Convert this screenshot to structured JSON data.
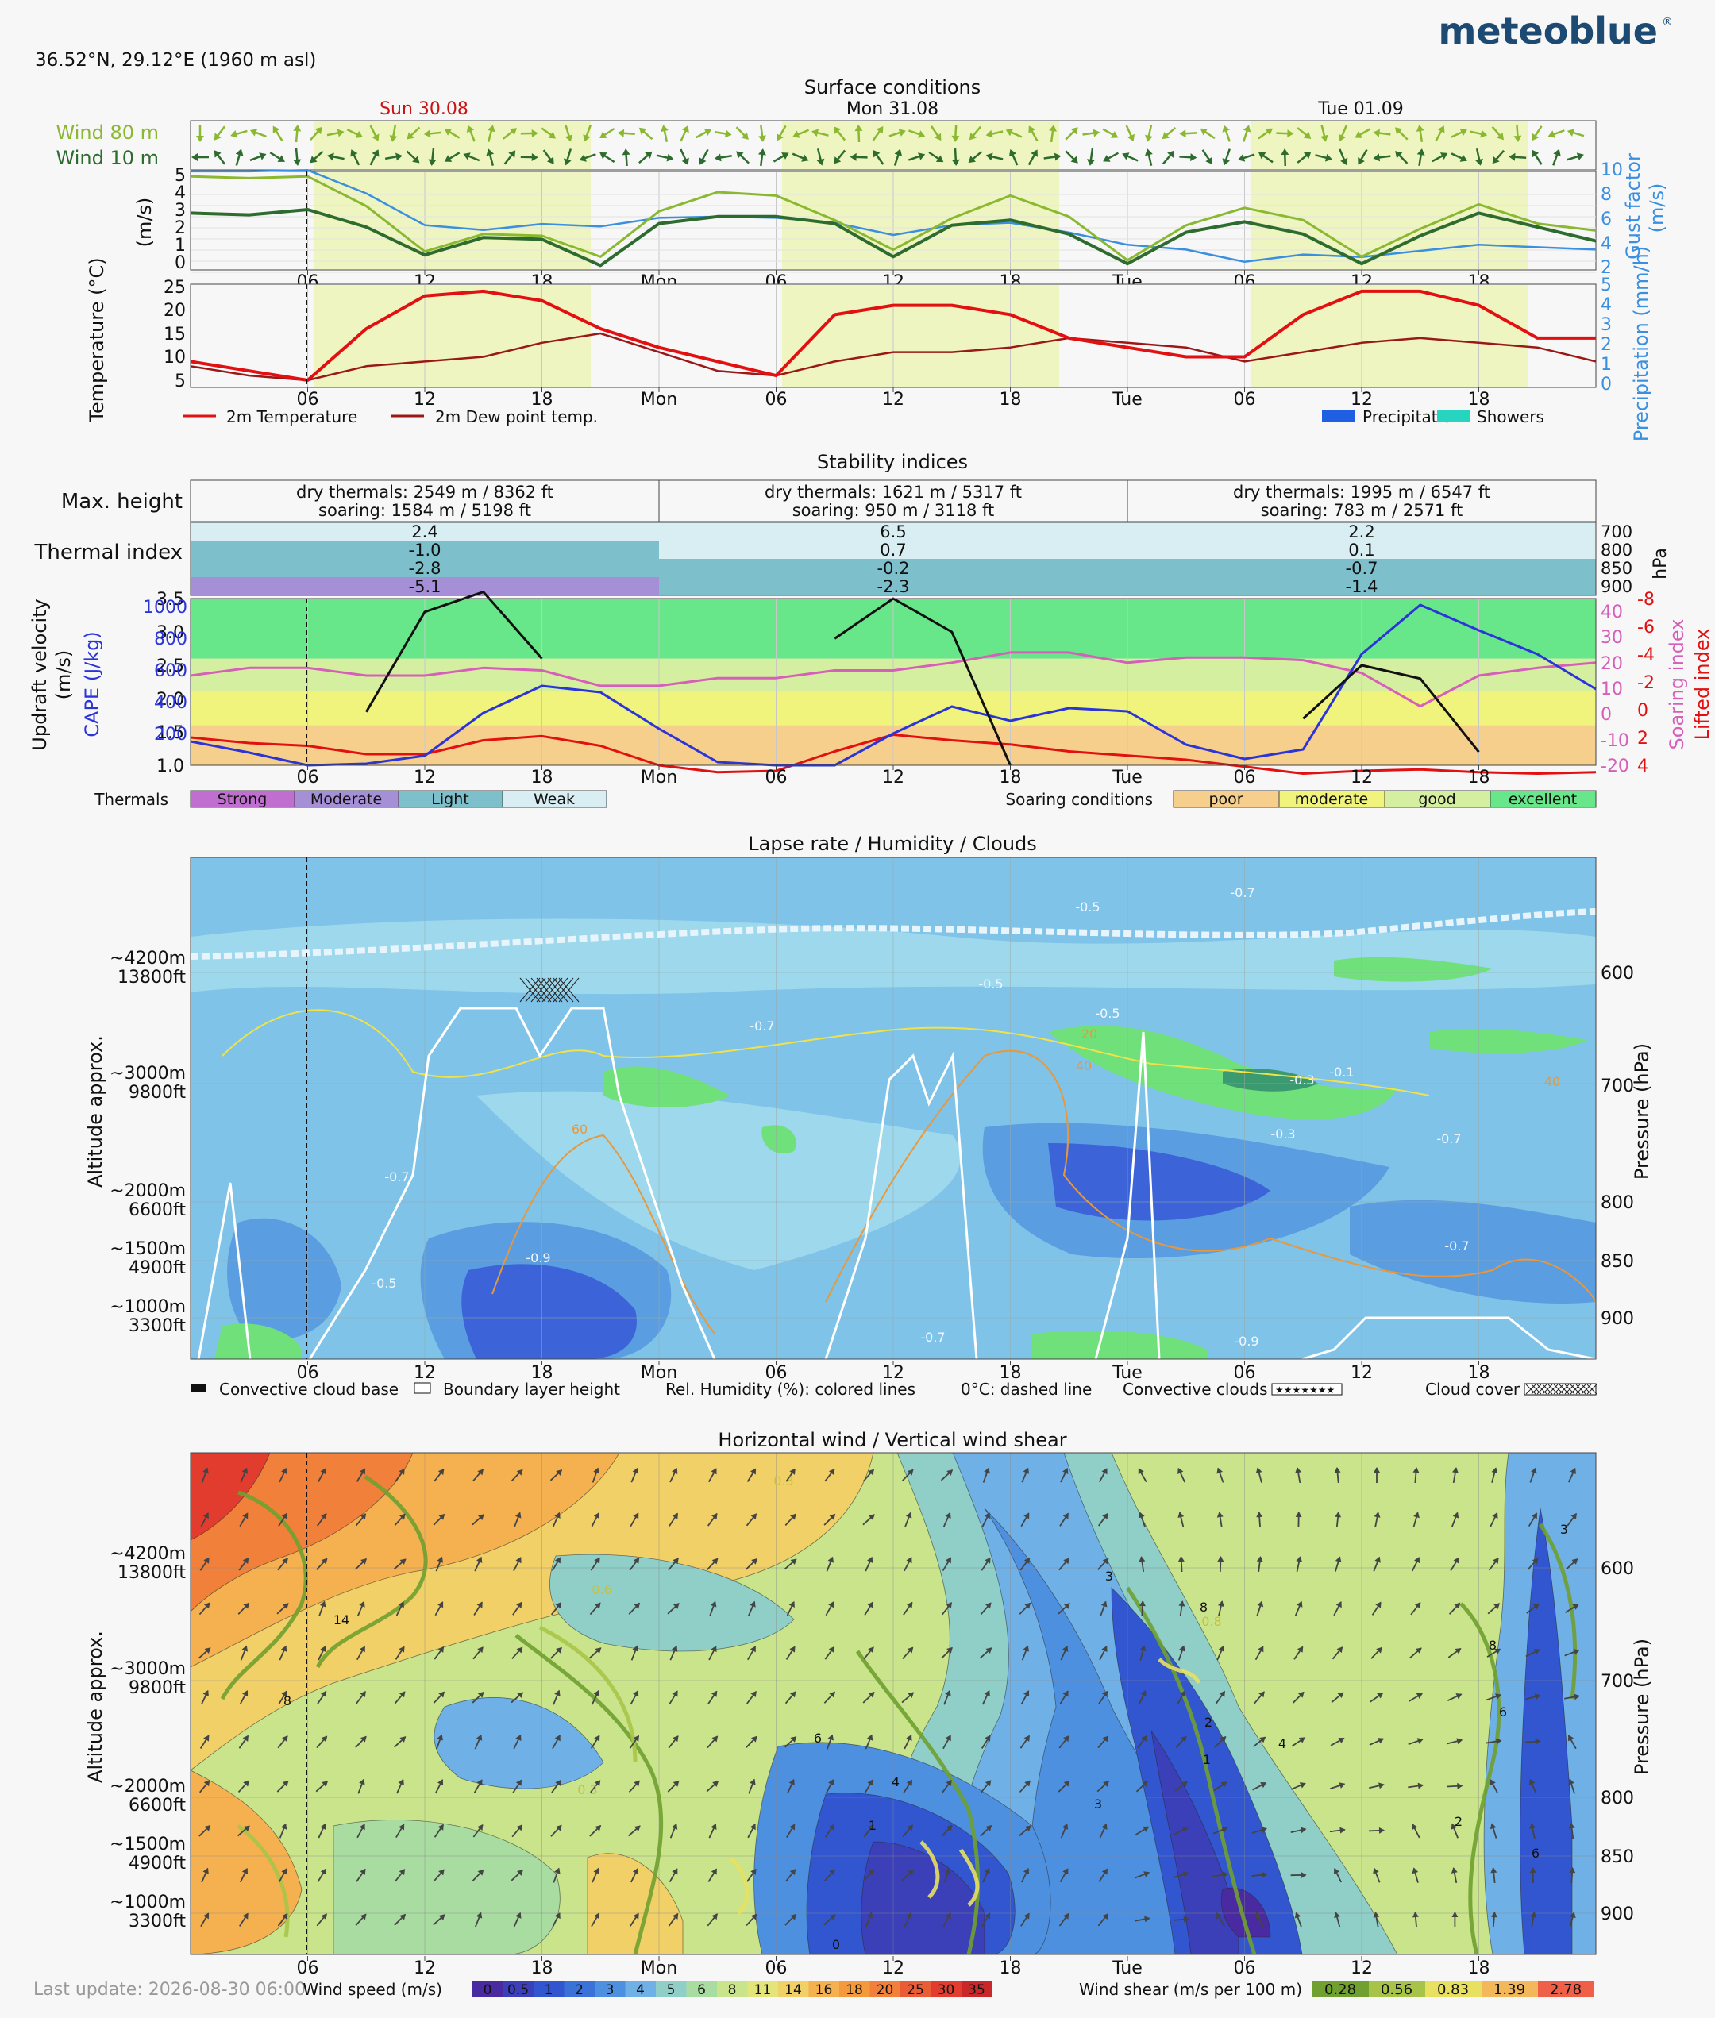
{
  "header": {
    "location": "36.52°N, 29.12°E (1960 m asl)",
    "logo": "meteoblue",
    "last_update": "Last update: 2026-08-30 06:00"
  },
  "colors": {
    "accent_red": "#d01010",
    "wind80": "#8ab830",
    "wind10": "#2e6b2e",
    "gust": "#3a8fe0",
    "daylight": "#eef5c0",
    "cape": "#2a34d8",
    "soaring": "#d65fb9",
    "lifted": "#e21010"
  },
  "time_axis": {
    "days": [
      "Sun 30.08",
      "Mon 31.08",
      "Tue 01.09"
    ],
    "ticks": [
      "06",
      "12",
      "18",
      "Mon",
      "06",
      "12",
      "18",
      "Tue",
      "06",
      "12",
      "18"
    ]
  },
  "surface": {
    "title": "Surface conditions",
    "wind80_label": "Wind 80 m",
    "wind10_label": "Wind 10 m",
    "ylabel_left": "(m/s)",
    "ylabel_right": "Gust factor (m/s)",
    "y_ticks": [
      "5",
      "4",
      "3",
      "2",
      "1",
      "0"
    ],
    "gust_ticks": [
      "10",
      "8",
      "6",
      "4",
      "2"
    ]
  },
  "temperature": {
    "ylabel_left": "Temperature (°C)",
    "ylabel_right": "Precipitation (mm/h)",
    "y_ticks": [
      "25",
      "20",
      "15",
      "10",
      "5"
    ],
    "precip_ticks": [
      "5",
      "4",
      "3",
      "2",
      "1",
      "0"
    ],
    "legend_temp": "2m Temperature",
    "legend_dew": "2m Dew point temp.",
    "legend_precip": "Precipitation",
    "legend_showers": "Showers"
  },
  "stability": {
    "title": "Stability indices",
    "max_height_label": "Max. height",
    "thermal_index_label": "Thermal index",
    "hpa_label": "hPa",
    "levels": [
      "700",
      "800",
      "850",
      "900"
    ],
    "max_height": [
      [
        "dry thermals: 2549 m / 8362 ft",
        "soaring: 1584 m / 5198 ft"
      ],
      [
        "dry thermals: 1621 m / 5317 ft",
        "soaring: 950 m / 3118 ft"
      ],
      [
        "dry thermals: 1995 m / 6547 ft",
        "soaring: 783 m / 2571 ft"
      ]
    ],
    "thermal_index": [
      [
        "2.4",
        "-1.0",
        "-2.8",
        "-5.1"
      ],
      [
        "6.5",
        "0.7",
        "-0.2",
        "-2.3"
      ],
      [
        "2.2",
        "0.1",
        "-0.7",
        "-1.4"
      ]
    ],
    "thermal_index_class": [
      [
        "weak",
        "light",
        "light",
        "moderate"
      ],
      [
        "weak",
        "weak",
        "light",
        "light"
      ],
      [
        "weak",
        "weak",
        "light",
        "light"
      ]
    ],
    "updraft_label": "Updraft velocity (m/s)",
    "cape_label": "CAPE (J/kg)",
    "soaring_label": "Soaring index",
    "lifted_label": "Lifted index",
    "updraft_ticks": [
      "3.5",
      "3.0",
      "2.5",
      "2.0",
      "1.5",
      "1.0"
    ],
    "cape_ticks": [
      "1000",
      "800",
      "600",
      "400",
      "200"
    ],
    "soaring_ticks": [
      "40",
      "30",
      "20",
      "10",
      "0",
      "-10",
      "-20"
    ],
    "lifted_ticks": [
      "-8",
      "-6",
      "-4",
      "-2",
      "0",
      "2",
      "4"
    ],
    "thermals_label": "Thermals",
    "thermals_legend": [
      "Strong",
      "Moderate",
      "Light",
      "Weak"
    ],
    "soaring_cond_label": "Soaring conditions",
    "soaring_legend": [
      "poor",
      "moderate",
      "good",
      "excellent"
    ]
  },
  "lapse": {
    "title": "Lapse rate / Humidity / Clouds",
    "ylabel_left": "Altitude approx.",
    "ylabel_right": "Pressure (hPa)",
    "alt_labels": [
      [
        "~4200m",
        "13800ft"
      ],
      [
        "~3000m",
        "9800ft"
      ],
      [
        "~2000m",
        "6600ft"
      ],
      [
        "~1500m",
        "4900ft"
      ],
      [
        "~1000m",
        "3300ft"
      ]
    ],
    "pressure_ticks": [
      "600",
      "700",
      "800",
      "850",
      "900"
    ],
    "contour_labels": [
      "-0.5",
      "-0.7",
      "-0.5",
      "-0.7",
      "-0.5",
      "-0.3",
      "-0.1",
      "-0.3",
      "-0.7",
      "-0.7",
      "-0.9",
      "-0.9",
      "-0.7",
      "-0.5",
      "-0.7",
      "20",
      "40",
      "60",
      "40"
    ],
    "legend": [
      "Convective cloud base",
      "Boundary layer height",
      "Rel. Humidity (%): colored lines",
      "0°C: dashed line",
      "Convective clouds",
      "Cloud cover"
    ]
  },
  "hwind": {
    "title": "Horizontal wind / Vertical wind shear",
    "ylabel_left": "Altitude approx.",
    "ylabel_right": "Pressure (hPa)",
    "contour_labels": [
      "14",
      "8",
      "6",
      "4",
      "3",
      "8",
      "2",
      "1",
      "6",
      "4",
      "3",
      "8",
      "6",
      "2",
      "3",
      "0.3",
      "0.6",
      "0.8",
      "0.3",
      "1",
      "0"
    ],
    "windspeed_label": "Wind speed (m/s)",
    "windspeed_scale": [
      "0",
      "0.5",
      "1",
      "2",
      "3",
      "4",
      "5",
      "6",
      "8",
      "11",
      "14",
      "16",
      "18",
      "20",
      "25",
      "30",
      "35"
    ],
    "windspeed_colors": [
      "#4a2aa0",
      "#3b3fb8",
      "#3256d0",
      "#3a72d8",
      "#4e90e0",
      "#6fb1e6",
      "#8fcfc8",
      "#a9dca0",
      "#c9e48a",
      "#e3e47a",
      "#f2d068",
      "#f5b150",
      "#f49a3d",
      "#f0803a",
      "#ea5c35",
      "#e23c2e",
      "#c8282a"
    ],
    "shear_label": "Wind shear (m/s per 100 m)",
    "shear_scale": [
      "0.28",
      "0.56",
      "0.83",
      "1.39",
      "2.78"
    ],
    "shear_colors": [
      "#6fa030",
      "#a8c448",
      "#e8e060",
      "#f2b85a",
      "#f06048"
    ]
  },
  "chart_data": [
    {
      "type": "line",
      "title": "Surface conditions",
      "x_unit": "hours since Sun 30.08 00:00",
      "x": [
        0,
        3,
        6,
        9,
        12,
        15,
        18,
        21,
        24,
        27,
        30,
        33,
        36,
        39,
        42,
        45,
        48,
        51,
        54,
        57,
        60,
        63,
        66,
        69,
        72
      ],
      "ylabel": "(m/s)",
      "ylim": [
        0,
        5.5
      ],
      "series": [
        {
          "name": "Wind 80 m",
          "values": [
            4.9,
            4.8,
            4.9,
            3.2,
            0.6,
            1.6,
            1.5,
            0.3,
            2.9,
            4.0,
            3.8,
            2.4,
            0.7,
            2.5,
            3.8,
            2.6,
            0.1,
            2.1,
            3.1,
            2.4,
            0.3,
            1.9,
            3.3,
            2.2,
            1.8
          ]
        },
        {
          "name": "Wind 10 m",
          "values": [
            2.8,
            2.7,
            3.0,
            2.0,
            0.4,
            1.4,
            1.3,
            -0.2,
            2.2,
            2.6,
            2.6,
            2.2,
            0.3,
            2.1,
            2.4,
            1.6,
            -0.1,
            1.7,
            2.3,
            1.6,
            -0.1,
            1.5,
            2.8,
            2.0,
            1.2
          ]
        }
      ],
      "gust_factor": {
        "name": "Gust factor",
        "ylim": [
          2,
          10
        ],
        "values": [
          9.8,
          9.8,
          9.9,
          8.0,
          5.4,
          5.0,
          5.5,
          5.3,
          6.0,
          6.1,
          6.0,
          5.6,
          4.6,
          5.4,
          5.6,
          4.8,
          3.8,
          3.4,
          2.4,
          3.0,
          2.8,
          3.3,
          3.8,
          3.6,
          3.4
        ]
      }
    },
    {
      "type": "line",
      "x_unit": "hours since Sun 30.08 00:00",
      "x": [
        0,
        3,
        6,
        9,
        12,
        15,
        18,
        21,
        24,
        27,
        30,
        33,
        36,
        39,
        42,
        45,
        48,
        51,
        54,
        57,
        60,
        63,
        66,
        69,
        72
      ],
      "ylabel": "Temperature (°C)",
      "ylim": [
        3,
        27
      ],
      "series": [
        {
          "name": "2m Temperature",
          "values": [
            9,
            7,
            5,
            16,
            23,
            24,
            22,
            16,
            12,
            9,
            6,
            19,
            21,
            21,
            19,
            14,
            12,
            10,
            10,
            19,
            24,
            24,
            21,
            14,
            14
          ]
        },
        {
          "name": "2m Dew point temp.",
          "values": [
            8,
            6,
            5,
            8,
            9,
            10,
            13,
            15,
            11,
            7,
            6,
            9,
            11,
            11,
            12,
            14,
            13,
            12,
            9,
            11,
            13,
            14,
            13,
            12,
            9
          ]
        }
      ],
      "precipitation": {
        "name": "Precipitation",
        "unit": "mm/h",
        "values": [
          0,
          0,
          0,
          0,
          0,
          0,
          0,
          0,
          0,
          0,
          0,
          0,
          0,
          0,
          0,
          0,
          0,
          0,
          0,
          0,
          0,
          0,
          0,
          0,
          0
        ]
      }
    },
    {
      "type": "line",
      "title": "Stability indices",
      "x_unit": "hours since Sun 30.08 00:00",
      "x": [
        0,
        3,
        6,
        9,
        12,
        15,
        18,
        21,
        24,
        27,
        30,
        33,
        36,
        39,
        42,
        45,
        48,
        51,
        54,
        57,
        60,
        63,
        66,
        69,
        72
      ],
      "ylabel": "Updraft velocity (m/s)",
      "ylim": [
        1.0,
        3.5
      ],
      "series": [
        {
          "name": "Updraft velocity",
          "values": [
            null,
            null,
            null,
            1.8,
            3.3,
            3.6,
            2.6,
            null,
            null,
            null,
            null,
            2.9,
            3.5,
            3.0,
            1.0,
            null,
            null,
            null,
            null,
            1.7,
            2.5,
            2.3,
            1.2,
            null,
            null
          ]
        },
        {
          "name": "CAPE (J/kg)",
          "ylim": [
            0,
            1100
          ],
          "values": [
            150,
            80,
            0,
            10,
            60,
            330,
            500,
            460,
            230,
            20,
            0,
            0,
            200,
            370,
            280,
            360,
            340,
            130,
            40,
            100,
            700,
            1010,
            850,
            700,
            480
          ]
        },
        {
          "name": "Soaring index",
          "ylim": [
            -20,
            45
          ],
          "values": [
            15,
            18,
            18,
            15,
            15,
            18,
            17,
            11,
            11,
            14,
            14,
            17,
            17,
            20,
            24,
            24,
            20,
            22,
            22,
            21,
            16,
            3,
            15,
            18,
            20
          ]
        },
        {
          "name": "Lifted index",
          "ylim": [
            4,
            -8
          ],
          "values": [
            2,
            2.4,
            2.6,
            3.2,
            3.2,
            2.2,
            1.9,
            2.6,
            4.0,
            4.5,
            4.4,
            3.0,
            1.8,
            2.2,
            2.5,
            3.0,
            3.3,
            3.6,
            4.1,
            4.6,
            4.4,
            4.3,
            4.5,
            4.6,
            4.5
          ]
        }
      ],
      "soaring_bands": [
        {
          "label": "poor",
          "range": [
            1.0,
            1.6
          ],
          "color": "#f6cf8c"
        },
        {
          "label": "moderate",
          "range": [
            1.6,
            2.1
          ],
          "color": "#f0f47c"
        },
        {
          "label": "good",
          "range": [
            2.1,
            2.6
          ],
          "color": "#d5efa0"
        },
        {
          "label": "excellent",
          "range": [
            2.6,
            3.5
          ],
          "color": "#68e68a"
        }
      ]
    }
  ]
}
